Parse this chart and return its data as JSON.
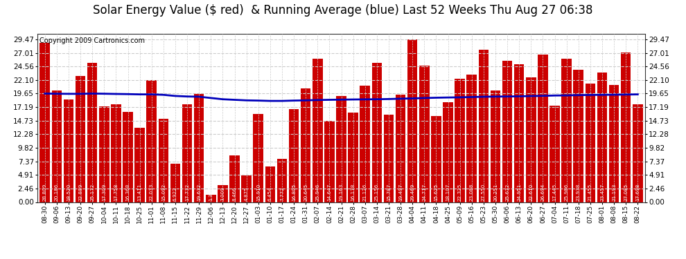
{
  "title": "Solar Energy Value ($ red)  & Running Average (blue) Last 52 Weeks Thu Aug 27 06:38",
  "copyright": "Copyright 2009 Cartronics.com",
  "categories": [
    "08-30",
    "09-06",
    "09-13",
    "09-20",
    "09-27",
    "10-04",
    "10-11",
    "10-18",
    "10-25",
    "11-01",
    "11-08",
    "11-15",
    "11-22",
    "11-29",
    "12-06",
    "12-13",
    "12-20",
    "12-27",
    "01-03",
    "01-10",
    "01-17",
    "01-24",
    "01-31",
    "02-07",
    "02-14",
    "02-21",
    "02-28",
    "03-07",
    "03-14",
    "03-21",
    "03-28",
    "04-04",
    "04-11",
    "04-18",
    "04-25",
    "05-09",
    "05-16",
    "05-23",
    "05-30",
    "06-06",
    "06-13",
    "06-20",
    "06-27",
    "07-04",
    "07-11",
    "07-18",
    "07-25",
    "08-01",
    "08-08",
    "08-15",
    "08-22"
  ],
  "values": [
    28.809,
    20.186,
    18.52,
    22.889,
    25.172,
    17.309,
    17.758,
    16.368,
    13.411,
    22.033,
    15.092,
    6.922,
    17.732,
    19.632,
    1.369,
    3.009,
    8.466,
    4.875,
    15.91,
    6.454,
    7.772,
    16.805,
    20.645,
    25.946,
    14.647,
    19.163,
    16.178,
    21.126,
    25.156,
    15.787,
    19.497,
    29.469,
    24.717,
    15.625,
    18.107,
    22.325,
    23.088,
    27.55,
    20.251,
    25.632,
    24.951,
    22.61,
    26.694,
    17.445,
    25.986,
    23.938,
    21.455,
    23.457,
    21.193,
    27.085,
    17.698
  ],
  "running_avg": [
    19.65,
    19.62,
    19.6,
    19.6,
    19.65,
    19.62,
    19.58,
    19.55,
    19.5,
    19.5,
    19.42,
    19.22,
    19.12,
    19.08,
    18.85,
    18.62,
    18.52,
    18.42,
    18.38,
    18.32,
    18.32,
    18.38,
    18.42,
    18.48,
    18.52,
    18.55,
    18.58,
    18.6,
    18.62,
    18.66,
    18.72,
    18.77,
    18.84,
    18.9,
    18.94,
    18.97,
    19.02,
    19.07,
    19.1,
    19.12,
    19.15,
    19.2,
    19.24,
    19.3,
    19.32,
    19.37,
    19.4,
    19.42,
    19.44,
    19.47,
    19.5
  ],
  "yticks": [
    0.0,
    2.46,
    4.91,
    7.37,
    9.82,
    12.28,
    14.73,
    17.19,
    19.65,
    22.1,
    24.56,
    27.01,
    29.47
  ],
  "bar_color": "#cc0000",
  "line_color": "#0000bb",
  "bg_color": "#ffffff",
  "plot_bg_color": "#ffffff",
  "grid_color": "#cccccc",
  "title_fontsize": 12,
  "copyright_fontsize": 7,
  "ylim": [
    0,
    30.5
  ],
  "bar_width": 0.85
}
